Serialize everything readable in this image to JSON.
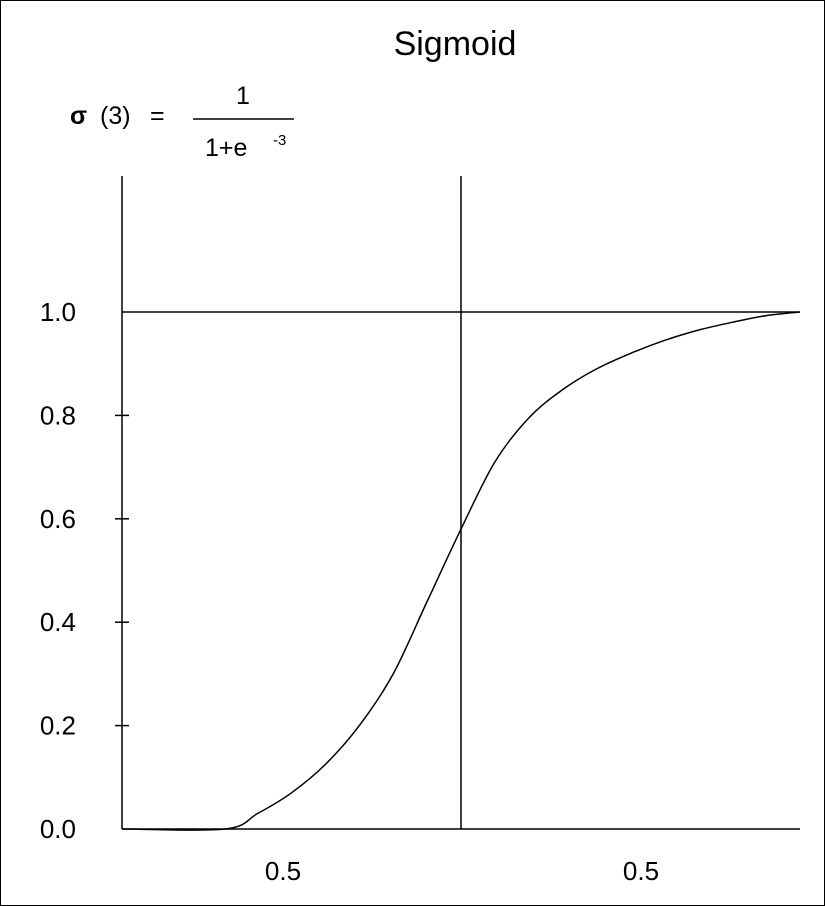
{
  "chart_data": {
    "type": "line",
    "title": "Sigmoid",
    "formula": {
      "lhs_symbol": "σ",
      "lhs_arg": "(3)",
      "equals": "=",
      "numerator": "1",
      "denominator_base": "1+e",
      "denominator_exponent": "-3"
    },
    "x_tick_labels": [
      "0.5",
      "0.5"
    ],
    "y_ticks": [
      0.0,
      0.2,
      0.4,
      0.6,
      0.8,
      1.0
    ],
    "y_tick_labels": [
      "0.0",
      "0.2",
      "0.4",
      "0.6",
      "0.8",
      "1.0"
    ],
    "ylim": [
      0.0,
      1.0
    ],
    "reference_lines": {
      "horizontal_at_y": 1.0,
      "vertical_at_center": true
    },
    "series": [
      {
        "points": [
          [
            0.0,
            0.0
          ],
          [
            0.152,
            0.0
          ],
          [
            0.2,
            0.03
          ],
          [
            0.25,
            0.07
          ],
          [
            0.3,
            0.125
          ],
          [
            0.35,
            0.2
          ],
          [
            0.4,
            0.3
          ],
          [
            0.45,
            0.44
          ],
          [
            0.5,
            0.58
          ],
          [
            0.55,
            0.71
          ],
          [
            0.6,
            0.795
          ],
          [
            0.65,
            0.85
          ],
          [
            0.7,
            0.89
          ],
          [
            0.75,
            0.92
          ],
          [
            0.8,
            0.945
          ],
          [
            0.85,
            0.965
          ],
          [
            0.9,
            0.98
          ],
          [
            0.95,
            0.993
          ],
          [
            1.0,
            1.0
          ]
        ]
      }
    ],
    "colors": {
      "line": "#000000",
      "background": "#ffffff"
    }
  }
}
